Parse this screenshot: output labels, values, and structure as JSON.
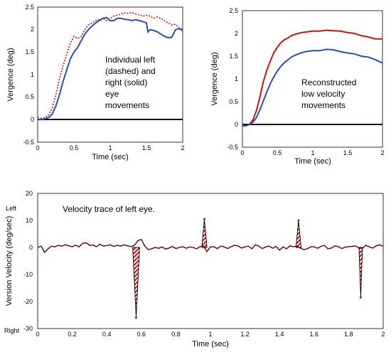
{
  "colors": {
    "left_eye": "#d01010",
    "right_eye": "#2a4db8",
    "baseline": "#000000",
    "highlight": "#3a9a3a"
  },
  "chart_data": [
    {
      "id": "individual",
      "type": "line",
      "xlabel": "Time (sec)",
      "ylabel": "Vergence (deg)",
      "xlim": [
        0,
        2
      ],
      "ylim": [
        -0.5,
        2.5
      ],
      "xticks": [
        "0",
        "0.5",
        "1",
        "1.5",
        "2"
      ],
      "yticks": [
        "-0.5",
        "0",
        "0.5",
        "1",
        "1.5",
        "2",
        "2.5"
      ],
      "annotation": [
        "Individual left",
        "(dashed) and",
        "right (solid)",
        "eye",
        "movements"
      ],
      "series": [
        {
          "style": "dashed",
          "color": "left_eye",
          "x": [
            0,
            0.05,
            0.1,
            0.15,
            0.2,
            0.25,
            0.3,
            0.35,
            0.4,
            0.45,
            0.5,
            0.55,
            0.6,
            0.65,
            0.7,
            0.75,
            0.8,
            0.85,
            0.9,
            0.95,
            1.0,
            1.05,
            1.1,
            1.15,
            1.2,
            1.25,
            1.3,
            1.35,
            1.4,
            1.45,
            1.5,
            1.55,
            1.6,
            1.65,
            1.7,
            1.75,
            1.8,
            1.85,
            1.9,
            1.95,
            2.0
          ],
          "y": [
            0.05,
            0.03,
            0.05,
            0.1,
            0.25,
            0.55,
            0.9,
            1.2,
            1.45,
            1.7,
            1.85,
            1.8,
            1.85,
            2.0,
            2.1,
            2.15,
            2.2,
            2.22,
            2.25,
            2.2,
            2.25,
            2.3,
            2.32,
            2.35,
            2.37,
            2.36,
            2.38,
            2.35,
            2.33,
            2.3,
            2.32,
            2.3,
            2.25,
            2.28,
            2.25,
            2.2,
            2.15,
            2.1,
            2.12,
            2.05,
            2.0
          ]
        },
        {
          "style": "solid",
          "color": "right_eye",
          "x": [
            0,
            0.05,
            0.1,
            0.15,
            0.2,
            0.25,
            0.3,
            0.35,
            0.4,
            0.45,
            0.5,
            0.55,
            0.6,
            0.65,
            0.7,
            0.75,
            0.8,
            0.85,
            0.9,
            0.95,
            1.0,
            1.05,
            1.1,
            1.15,
            1.2,
            1.25,
            1.3,
            1.35,
            1.4,
            1.45,
            1.5,
            1.52,
            1.55,
            1.6,
            1.65,
            1.7,
            1.75,
            1.8,
            1.85,
            1.9,
            1.95,
            2.0
          ],
          "y": [
            0,
            0,
            0.02,
            0.05,
            0.12,
            0.3,
            0.55,
            0.85,
            1.1,
            1.35,
            1.5,
            1.6,
            1.75,
            1.9,
            2.0,
            2.08,
            2.15,
            2.2,
            2.25,
            2.27,
            2.2,
            2.2,
            2.25,
            2.25,
            2.23,
            2.22,
            2.2,
            2.22,
            2.2,
            2.18,
            2.15,
            1.95,
            2.0,
            1.98,
            1.95,
            1.9,
            1.85,
            1.82,
            1.83,
            2.0,
            2.02,
            1.98
          ]
        }
      ]
    },
    {
      "id": "reconstructed",
      "type": "line",
      "xlabel": "Time (sec)",
      "ylabel": "Vergence (deg)",
      "xlim": [
        0,
        2
      ],
      "ylim": [
        -0.5,
        2.5
      ],
      "xticks": [
        "0",
        "0.5",
        "1",
        "1.5",
        "2"
      ],
      "yticks": [
        "-0.5",
        "0",
        "0.5",
        "1",
        "1.5",
        "2",
        "2.5"
      ],
      "annotation": [
        "Reconstructed",
        "low velocity",
        "movements"
      ],
      "series": [
        {
          "style": "solid",
          "color": "left_eye",
          "x": [
            0,
            0.05,
            0.1,
            0.15,
            0.2,
            0.25,
            0.3,
            0.35,
            0.4,
            0.45,
            0.5,
            0.55,
            0.6,
            0.65,
            0.7,
            0.75,
            0.8,
            0.85,
            0.9,
            0.95,
            1.0,
            1.1,
            1.2,
            1.3,
            1.4,
            1.5,
            1.6,
            1.7,
            1.8,
            1.9,
            2.0
          ],
          "y": [
            -0.02,
            -0.03,
            0,
            0.1,
            0.3,
            0.6,
            0.95,
            1.2,
            1.4,
            1.58,
            1.7,
            1.8,
            1.86,
            1.9,
            1.95,
            1.98,
            2.0,
            2.02,
            2.03,
            2.04,
            2.05,
            2.05,
            2.07,
            2.06,
            2.05,
            2.02,
            2.0,
            1.95,
            1.92,
            1.88,
            1.88
          ]
        },
        {
          "style": "solid",
          "color": "right_eye",
          "x": [
            0,
            0.05,
            0.1,
            0.15,
            0.2,
            0.25,
            0.3,
            0.35,
            0.4,
            0.45,
            0.5,
            0.55,
            0.6,
            0.65,
            0.7,
            0.75,
            0.8,
            0.85,
            0.9,
            0.95,
            1.0,
            1.1,
            1.2,
            1.3,
            1.4,
            1.5,
            1.6,
            1.7,
            1.8,
            1.9,
            2.0
          ],
          "y": [
            -0.03,
            -0.03,
            0,
            0.05,
            0.15,
            0.32,
            0.52,
            0.72,
            0.9,
            1.05,
            1.18,
            1.28,
            1.36,
            1.42,
            1.48,
            1.52,
            1.55,
            1.58,
            1.6,
            1.61,
            1.62,
            1.62,
            1.65,
            1.64,
            1.6,
            1.57,
            1.55,
            1.5,
            1.48,
            1.42,
            1.35
          ]
        }
      ]
    },
    {
      "id": "velocity",
      "type": "line",
      "xlabel": "Time (sec)",
      "ylabel": "Version Velocity (deg/sec)",
      "xlim": [
        0,
        2
      ],
      "ylim": [
        -30,
        20
      ],
      "xticks": [
        "0",
        "0.2",
        "0.4",
        "0.6",
        "0.8",
        "1",
        "1.2",
        "1.4",
        "1.6",
        "1.8",
        "2"
      ],
      "yticks": [
        "-30",
        "-20",
        "-10",
        "0",
        "10",
        "20"
      ],
      "annotation": [
        "Velocity trace of left eye."
      ],
      "direction_labels": {
        "top": "Left",
        "bottom": "Right"
      },
      "trace": {
        "x": [
          0,
          0.02,
          0.04,
          0.06,
          0.08,
          0.1,
          0.12,
          0.14,
          0.16,
          0.18,
          0.2,
          0.22,
          0.24,
          0.26,
          0.28,
          0.3,
          0.32,
          0.34,
          0.36,
          0.38,
          0.4,
          0.42,
          0.44,
          0.46,
          0.48,
          0.5,
          0.52,
          0.54,
          0.56,
          0.58,
          0.6,
          0.62,
          0.64,
          0.66,
          0.68,
          0.7,
          0.72,
          0.74,
          0.76,
          0.78,
          0.8,
          0.82,
          0.84,
          0.86,
          0.88,
          0.9,
          0.92,
          0.94,
          0.96,
          0.98,
          1.0,
          1.02,
          1.04,
          1.06,
          1.08,
          1.1,
          1.12,
          1.14,
          1.16,
          1.18,
          1.2,
          1.22,
          1.24,
          1.26,
          1.28,
          1.3,
          1.32,
          1.34,
          1.36,
          1.38,
          1.4,
          1.42,
          1.44,
          1.46,
          1.48,
          1.5,
          1.52,
          1.54,
          1.56,
          1.58,
          1.6,
          1.62,
          1.64,
          1.66,
          1.68,
          1.7,
          1.72,
          1.74,
          1.76,
          1.78,
          1.8,
          1.82,
          1.84,
          1.86,
          1.88,
          1.9,
          1.92,
          1.94,
          1.96,
          1.98,
          2.0
        ],
        "y": [
          0,
          0.5,
          -1.8,
          -0.5,
          0.5,
          0.2,
          0.8,
          0.5,
          1.0,
          0.6,
          0.3,
          0.9,
          0.2,
          1.5,
          1.8,
          0.8,
          0.9,
          0.3,
          1.2,
          0.5,
          0.7,
          1.0,
          0.4,
          0.8,
          0.5,
          1.0,
          0.6,
          0.3,
          0.8,
          2.5,
          3.0,
          0.5,
          -0.8,
          -0.5,
          0,
          -0.3,
          0.2,
          -0.6,
          -0.2,
          0.4,
          -0.4,
          0,
          0.3,
          -0.3,
          0.2,
          0,
          -0.5,
          0.3,
          0.5,
          -1.5,
          0.2,
          0.3,
          -0.4,
          0.5,
          0.2,
          -0.4,
          0.3,
          0.8,
          0.6,
          -0.2,
          0.2,
          0.5,
          -0.5,
          1.0,
          0.5,
          -0.4,
          0.2,
          0.5,
          -0.3,
          0.4,
          -1.0,
          0.2,
          -0.5,
          0.6,
          0.3,
          0.5,
          -0.2,
          -0.8,
          -0.5,
          0.2,
          0.3,
          -0.3,
          0.4,
          0.8,
          -0.5,
          -0.2,
          0.6,
          0.3,
          -0.4,
          0.1,
          0.3,
          0.4,
          0.6,
          -0.2,
          -0.3,
          0.8,
          0.2,
          -0.2,
          0.6,
          1.0,
          0.4
        ]
      },
      "saccades": [
        {
          "start": 0.55,
          "peak_x": 0.57,
          "end": 0.59,
          "peak_y": -26
        },
        {
          "start": 0.95,
          "peak_x": 0.965,
          "end": 0.98,
          "peak_y": 10.5
        },
        {
          "start": 1.495,
          "peak_x": 1.51,
          "end": 1.525,
          "peak_y": 10
        },
        {
          "start": 1.86,
          "peak_x": 1.87,
          "end": 1.88,
          "peak_y": -18.5
        }
      ]
    }
  ]
}
